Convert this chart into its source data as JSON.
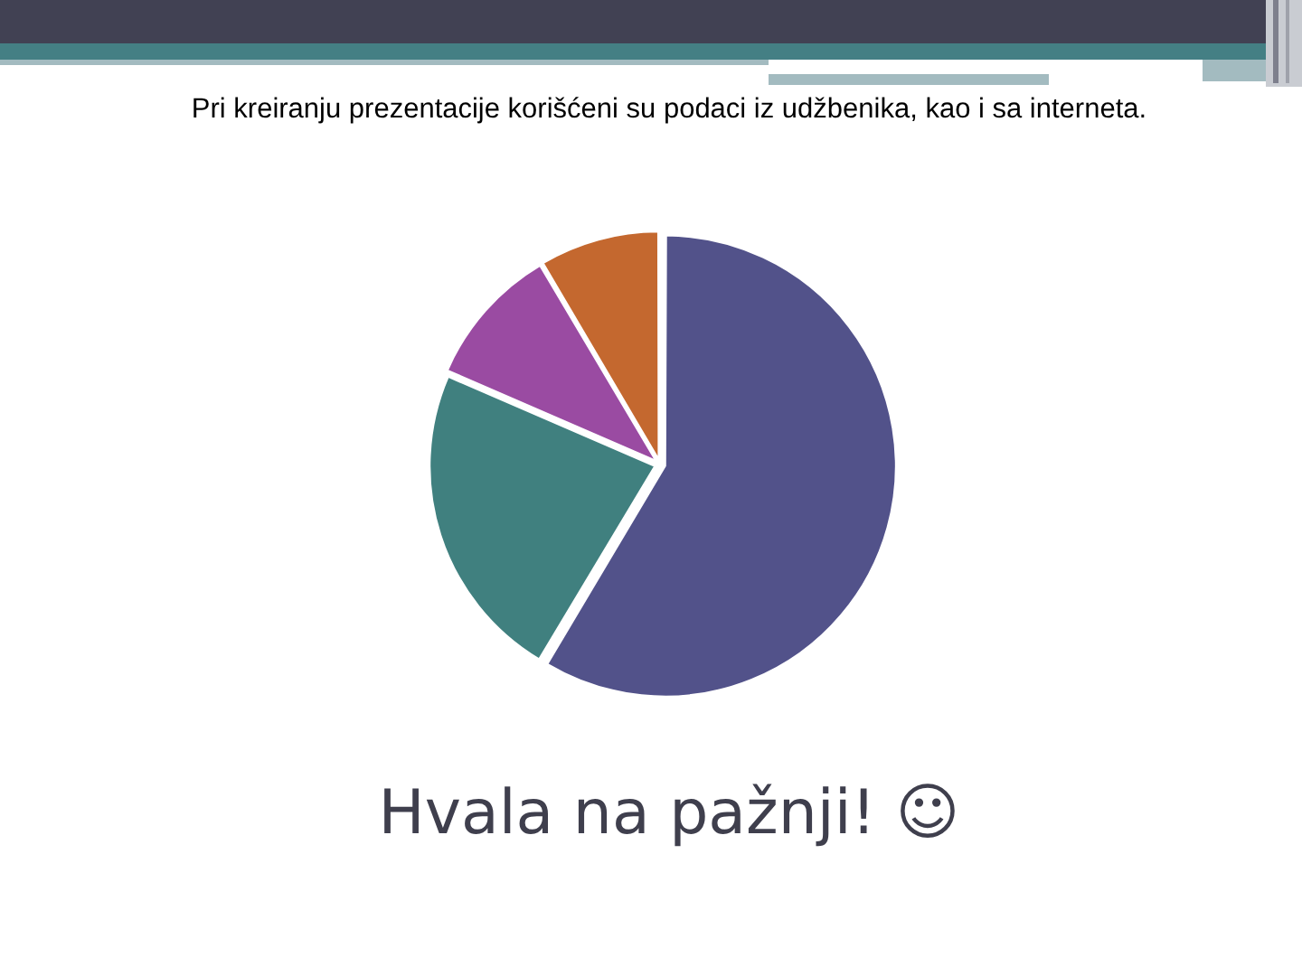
{
  "chart_data": {
    "type": "pie",
    "title": "Pri kreiranju prezentacije korišćeni su podaci iz udžbenika, kao i sa interneta.",
    "categories": [
      null,
      null,
      null,
      null
    ],
    "values": [
      58.6,
      22.9,
      10,
      8.5
    ],
    "colors": [
      "#52528a",
      "#40807f",
      "#9a4ba2",
      "#c4682f"
    ],
    "legend": false,
    "annotations": [
      "Hvala na pažnji! ☺"
    ]
  }
}
